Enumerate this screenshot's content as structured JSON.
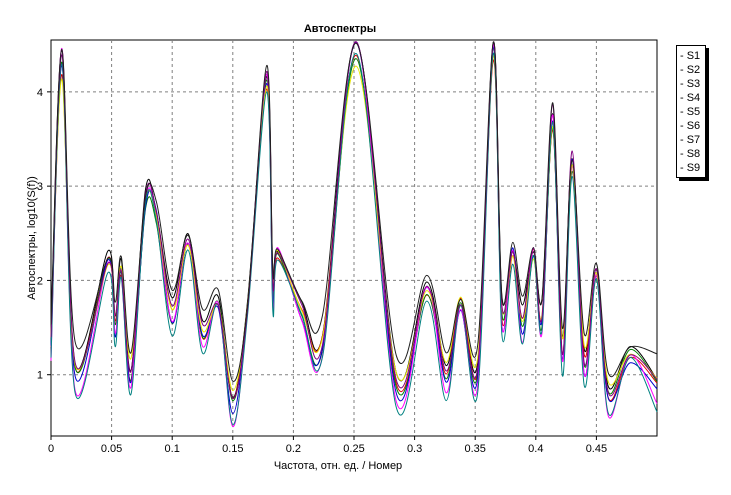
{
  "chart_data": {
    "type": "line",
    "title": "Автоспектры",
    "xlabel": "Частота, отн. ед. / Номер",
    "ylabel": "Автоспектры, log10(S(f))",
    "xlim": [
      0,
      0.5
    ],
    "ylim": [
      0.35,
      4.55
    ],
    "x_ticks": [
      "0",
      "0.05",
      "0.1",
      "0.15",
      "0.2",
      "0.25",
      "0.3",
      "0.35",
      "0.4",
      "0.45"
    ],
    "x_tick_values": [
      0,
      0.05,
      0.1,
      0.15,
      0.2,
      0.25,
      0.3,
      0.35,
      0.4,
      0.45
    ],
    "y_ticks": [
      "1",
      "2",
      "3",
      "4"
    ],
    "y_tick_values": [
      1,
      2,
      3,
      4
    ],
    "grid": true,
    "legend_position": "right",
    "peaks": [
      {
        "x": 0.009,
        "y": 4.35
      },
      {
        "x": 0.047,
        "y": 2.2
      },
      {
        "x": 0.058,
        "y": 2.1
      },
      {
        "x": 0.078,
        "y": 2.85
      },
      {
        "x": 0.087,
        "y": 2.7
      },
      {
        "x": 0.113,
        "y": 2.45
      },
      {
        "x": 0.138,
        "y": 1.75
      },
      {
        "x": 0.162,
        "y": 1.65
      },
      {
        "x": 0.178,
        "y": 4.15
      },
      {
        "x": 0.187,
        "y": 2.3
      },
      {
        "x": 0.207,
        "y": 1.65
      },
      {
        "x": 0.252,
        "y": 4.5
      },
      {
        "x": 0.31,
        "y": 1.9
      },
      {
        "x": 0.338,
        "y": 1.75
      },
      {
        "x": 0.365,
        "y": 4.5
      },
      {
        "x": 0.381,
        "y": 2.3
      },
      {
        "x": 0.398,
        "y": 2.3
      },
      {
        "x": 0.414,
        "y": 3.75
      },
      {
        "x": 0.43,
        "y": 3.25
      },
      {
        "x": 0.45,
        "y": 2.05
      },
      {
        "x": 0.478,
        "y": 1.2
      }
    ],
    "troughs": [
      {
        "x": 0.0,
        "y": 1.3
      },
      {
        "x": 0.02,
        "y": 1.0
      },
      {
        "x": 0.053,
        "y": 1.5
      },
      {
        "x": 0.066,
        "y": 0.95
      },
      {
        "x": 0.1,
        "y": 1.6
      },
      {
        "x": 0.125,
        "y": 1.4
      },
      {
        "x": 0.15,
        "y": 0.65
      },
      {
        "x": 0.183,
        "y": 1.85
      },
      {
        "x": 0.224,
        "y": 1.3
      },
      {
        "x": 0.285,
        "y": 0.9
      },
      {
        "x": 0.326,
        "y": 0.95
      },
      {
        "x": 0.352,
        "y": 0.95
      },
      {
        "x": 0.372,
        "y": 1.6
      },
      {
        "x": 0.389,
        "y": 1.5
      },
      {
        "x": 0.405,
        "y": 1.55
      },
      {
        "x": 0.422,
        "y": 1.2
      },
      {
        "x": 0.44,
        "y": 1.1
      },
      {
        "x": 0.46,
        "y": 0.75
      },
      {
        "x": 0.5,
        "y": 0.85
      }
    ],
    "series": [
      {
        "name": "S1",
        "color": "#000000",
        "amp": 1.0,
        "offset": 0.18,
        "spread": 1.05
      },
      {
        "name": "S2",
        "color": "#e00000",
        "amp": 0.95,
        "offset": 0.05,
        "spread": 1.0
      },
      {
        "name": "S3",
        "color": "#008000",
        "amp": 0.97,
        "offset": 0.0,
        "spread": 0.97
      },
      {
        "name": "S4",
        "color": "#0000cc",
        "amp": 1.0,
        "offset": -0.04,
        "spread": 1.0
      },
      {
        "name": "S5",
        "color": "#ff00ff",
        "amp": 1.03,
        "offset": -0.1,
        "spread": 1.05
      },
      {
        "name": "S6",
        "color": "#e6e600",
        "amp": 0.93,
        "offset": 0.12,
        "spread": 0.92
      },
      {
        "name": "S7",
        "color": "#008080",
        "amp": 0.98,
        "offset": -0.15,
        "spread": 1.1
      },
      {
        "name": "S8",
        "color": "#800080",
        "amp": 1.02,
        "offset": 0.08,
        "spread": 1.02
      },
      {
        "name": "S9",
        "color": "#202020",
        "amp": 0.99,
        "offset": 0.28,
        "spread": 0.95
      }
    ]
  }
}
